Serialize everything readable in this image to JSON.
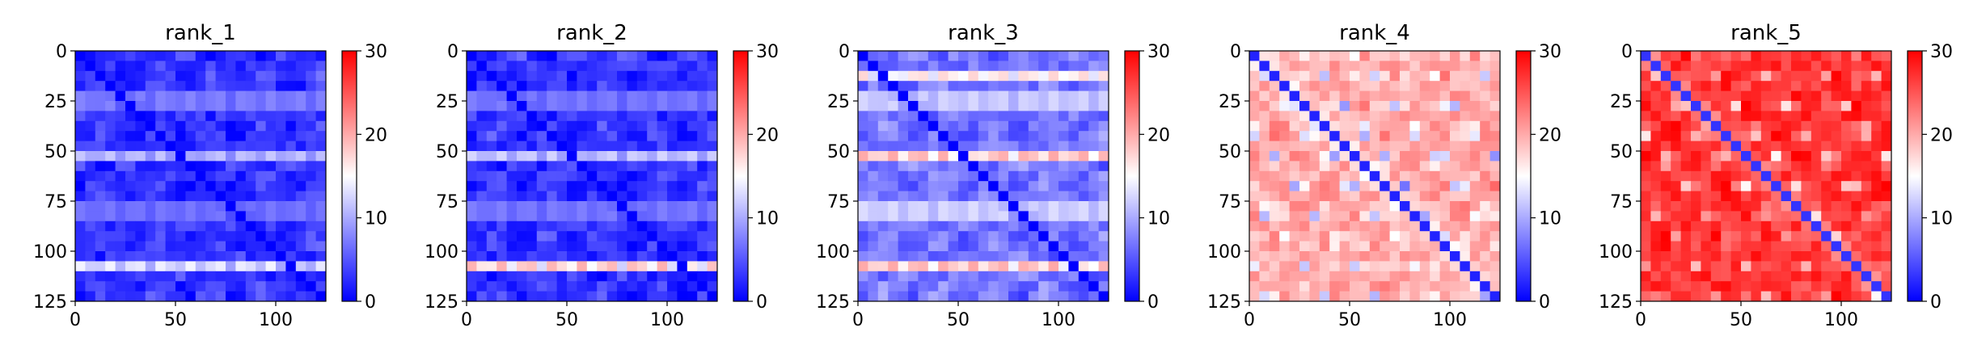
{
  "chart_data": [
    {
      "type": "heatmap",
      "title": "rank_1",
      "size": 125,
      "xticks": [
        0,
        50,
        100
      ],
      "yticks": [
        0,
        25,
        50,
        75,
        100,
        125
      ],
      "colorbar": {
        "min": 0,
        "max": 30,
        "ticks": [
          0,
          10,
          20,
          30
        ],
        "colors": [
          "#0000ff",
          "#ffffff",
          "#ff0000"
        ]
      },
      "base_level": 3,
      "diagonal_level": 0,
      "bands": [
        {
          "y": 25,
          "level": 16
        },
        {
          "y": 52,
          "level": 13
        },
        {
          "y": 80,
          "level": 14
        },
        {
          "y": 107,
          "level": 16
        }
      ]
    },
    {
      "type": "heatmap",
      "title": "rank_2",
      "size": 125,
      "xticks": [
        0,
        50,
        100
      ],
      "yticks": [
        0,
        25,
        50,
        75,
        100,
        125
      ],
      "colorbar": {
        "min": 0,
        "max": 30,
        "ticks": [
          0,
          10,
          20,
          30
        ],
        "colors": [
          "#0000ff",
          "#ffffff",
          "#ff0000"
        ]
      },
      "base_level": 3,
      "diagonal_level": 0,
      "bands": [
        {
          "y": 25,
          "level": 15
        },
        {
          "y": 52,
          "level": 14
        },
        {
          "y": 80,
          "level": 15
        },
        {
          "y": 107,
          "level": 22
        }
      ]
    },
    {
      "type": "heatmap",
      "title": "rank_3",
      "size": 125,
      "xticks": [
        0,
        50,
        100
      ],
      "yticks": [
        0,
        25,
        50,
        75,
        100,
        125
      ],
      "colorbar": {
        "min": 0,
        "max": 30,
        "ticks": [
          0,
          10,
          20,
          30
        ],
        "colors": [
          "#0000ff",
          "#ffffff",
          "#ff0000"
        ]
      },
      "base_level": 7,
      "diagonal_level": 0,
      "bands": [
        {
          "y": 12,
          "level": 19
        },
        {
          "y": 25,
          "level": 22
        },
        {
          "y": 52,
          "level": 22
        },
        {
          "y": 80,
          "level": 23
        },
        {
          "y": 107,
          "level": 22
        }
      ]
    },
    {
      "type": "heatmap",
      "title": "rank_4",
      "size": 125,
      "xticks": [
        0,
        50,
        100
      ],
      "yticks": [
        0,
        25,
        50,
        75,
        100,
        125
      ],
      "colorbar": {
        "min": 0,
        "max": 30,
        "ticks": [
          0,
          10,
          20,
          30
        ],
        "colors": [
          "#0000ff",
          "#ffffff",
          "#ff0000"
        ]
      },
      "base_level": 20,
      "diagonal_level": 2,
      "bands": []
    },
    {
      "type": "heatmap",
      "title": "rank_5",
      "size": 125,
      "xticks": [
        0,
        50,
        100
      ],
      "yticks": [
        0,
        25,
        50,
        75,
        100,
        125
      ],
      "colorbar": {
        "min": 0,
        "max": 30,
        "ticks": [
          0,
          10,
          20,
          30
        ],
        "colors": [
          "#0000ff",
          "#ffffff",
          "#ff0000"
        ]
      },
      "base_level": 27,
      "diagonal_level": 3,
      "bands": []
    }
  ]
}
